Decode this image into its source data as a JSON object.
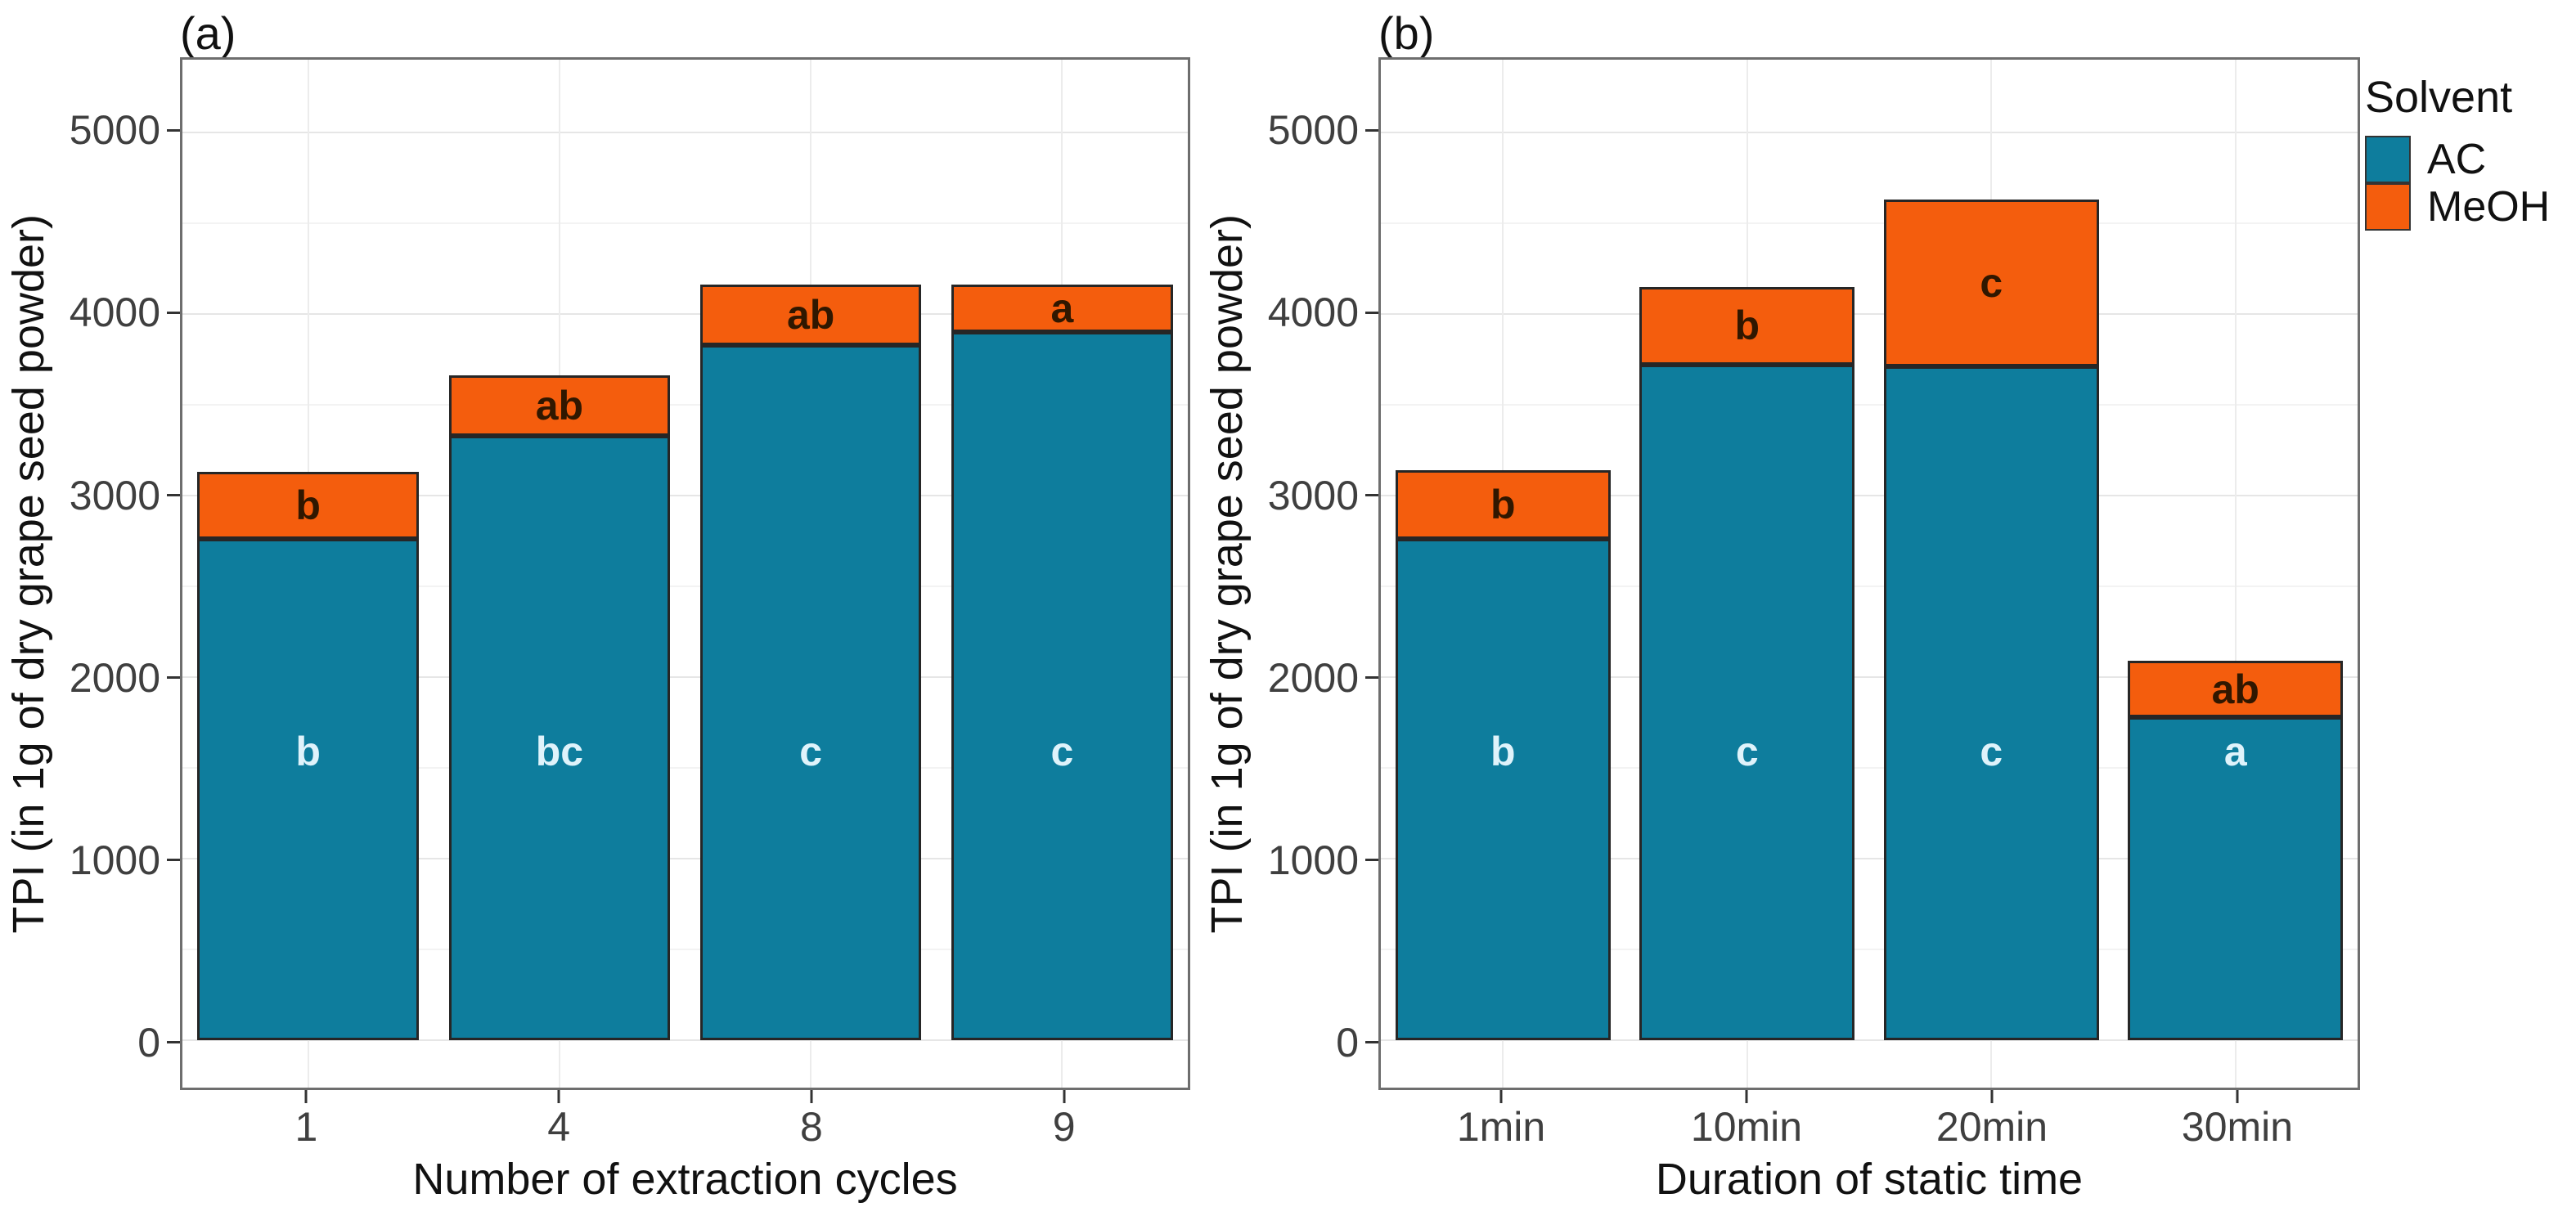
{
  "figure": {
    "background": "#FFFFFF"
  },
  "legend": {
    "title": "Solvent",
    "items": [
      {
        "label": "AC",
        "color": "#0E7D9D"
      },
      {
        "label": "MeOH",
        "color": "#F45D0D"
      }
    ]
  },
  "chart_data": [
    {
      "type": "bar",
      "stacked": true,
      "tag": "(a)",
      "xlabel": "Number of extraction cycles",
      "ylabel": "TPI (in 1g of dry grape seed powder)",
      "categories": [
        "1",
        "4",
        "8",
        "9"
      ],
      "series": [
        {
          "name": "AC",
          "color": "#0E7D9D",
          "values": [
            2760,
            3330,
            3830,
            3900
          ]
        },
        {
          "name": "MeOH",
          "color": "#F45D0D",
          "values": [
            370,
            330,
            330,
            260
          ]
        }
      ],
      "totals": [
        3130,
        3660,
        4160,
        4160
      ],
      "segment_labels": {
        "MeOH": [
          "b",
          "ab",
          "ab",
          "a"
        ],
        "AC": [
          "b",
          "bc",
          "c",
          "c"
        ]
      },
      "ylim": [
        0,
        5000
      ],
      "yticks": [
        0,
        1000,
        2000,
        3000,
        4000,
        5000
      ],
      "grid": true,
      "legend_position": "right"
    },
    {
      "type": "bar",
      "stacked": true,
      "tag": "(b)",
      "xlabel": "Duration of static time",
      "ylabel": "TPI (in 1g of dry grape seed powder)",
      "categories": [
        "1min",
        "10min",
        "20min",
        "30min"
      ],
      "series": [
        {
          "name": "AC",
          "color": "#0E7D9D",
          "values": [
            2760,
            3720,
            3710,
            1780
          ]
        },
        {
          "name": "MeOH",
          "color": "#F45D0D",
          "values": [
            380,
            430,
            920,
            310
          ]
        }
      ],
      "totals": [
        3140,
        4150,
        4630,
        2090
      ],
      "segment_labels": {
        "MeOH": [
          "b",
          "b",
          "c",
          "ab"
        ],
        "AC": [
          "b",
          "c",
          "c",
          "a"
        ]
      },
      "ylim": [
        0,
        5000
      ],
      "yticks": [
        0,
        1000,
        2000,
        3000,
        4000,
        5000
      ],
      "grid": true,
      "legend_position": "right"
    }
  ],
  "styles": {
    "ac_label_color": "#DFF3FB",
    "meoh_label_color": "#301700",
    "tick_label_color": "#3F3F3F",
    "axis_title_color": "#111111",
    "panel_border_color": "#6E6E6E",
    "grid_major_color": "#E6E6E6",
    "grid_minor_color": "#F3F3F3"
  }
}
